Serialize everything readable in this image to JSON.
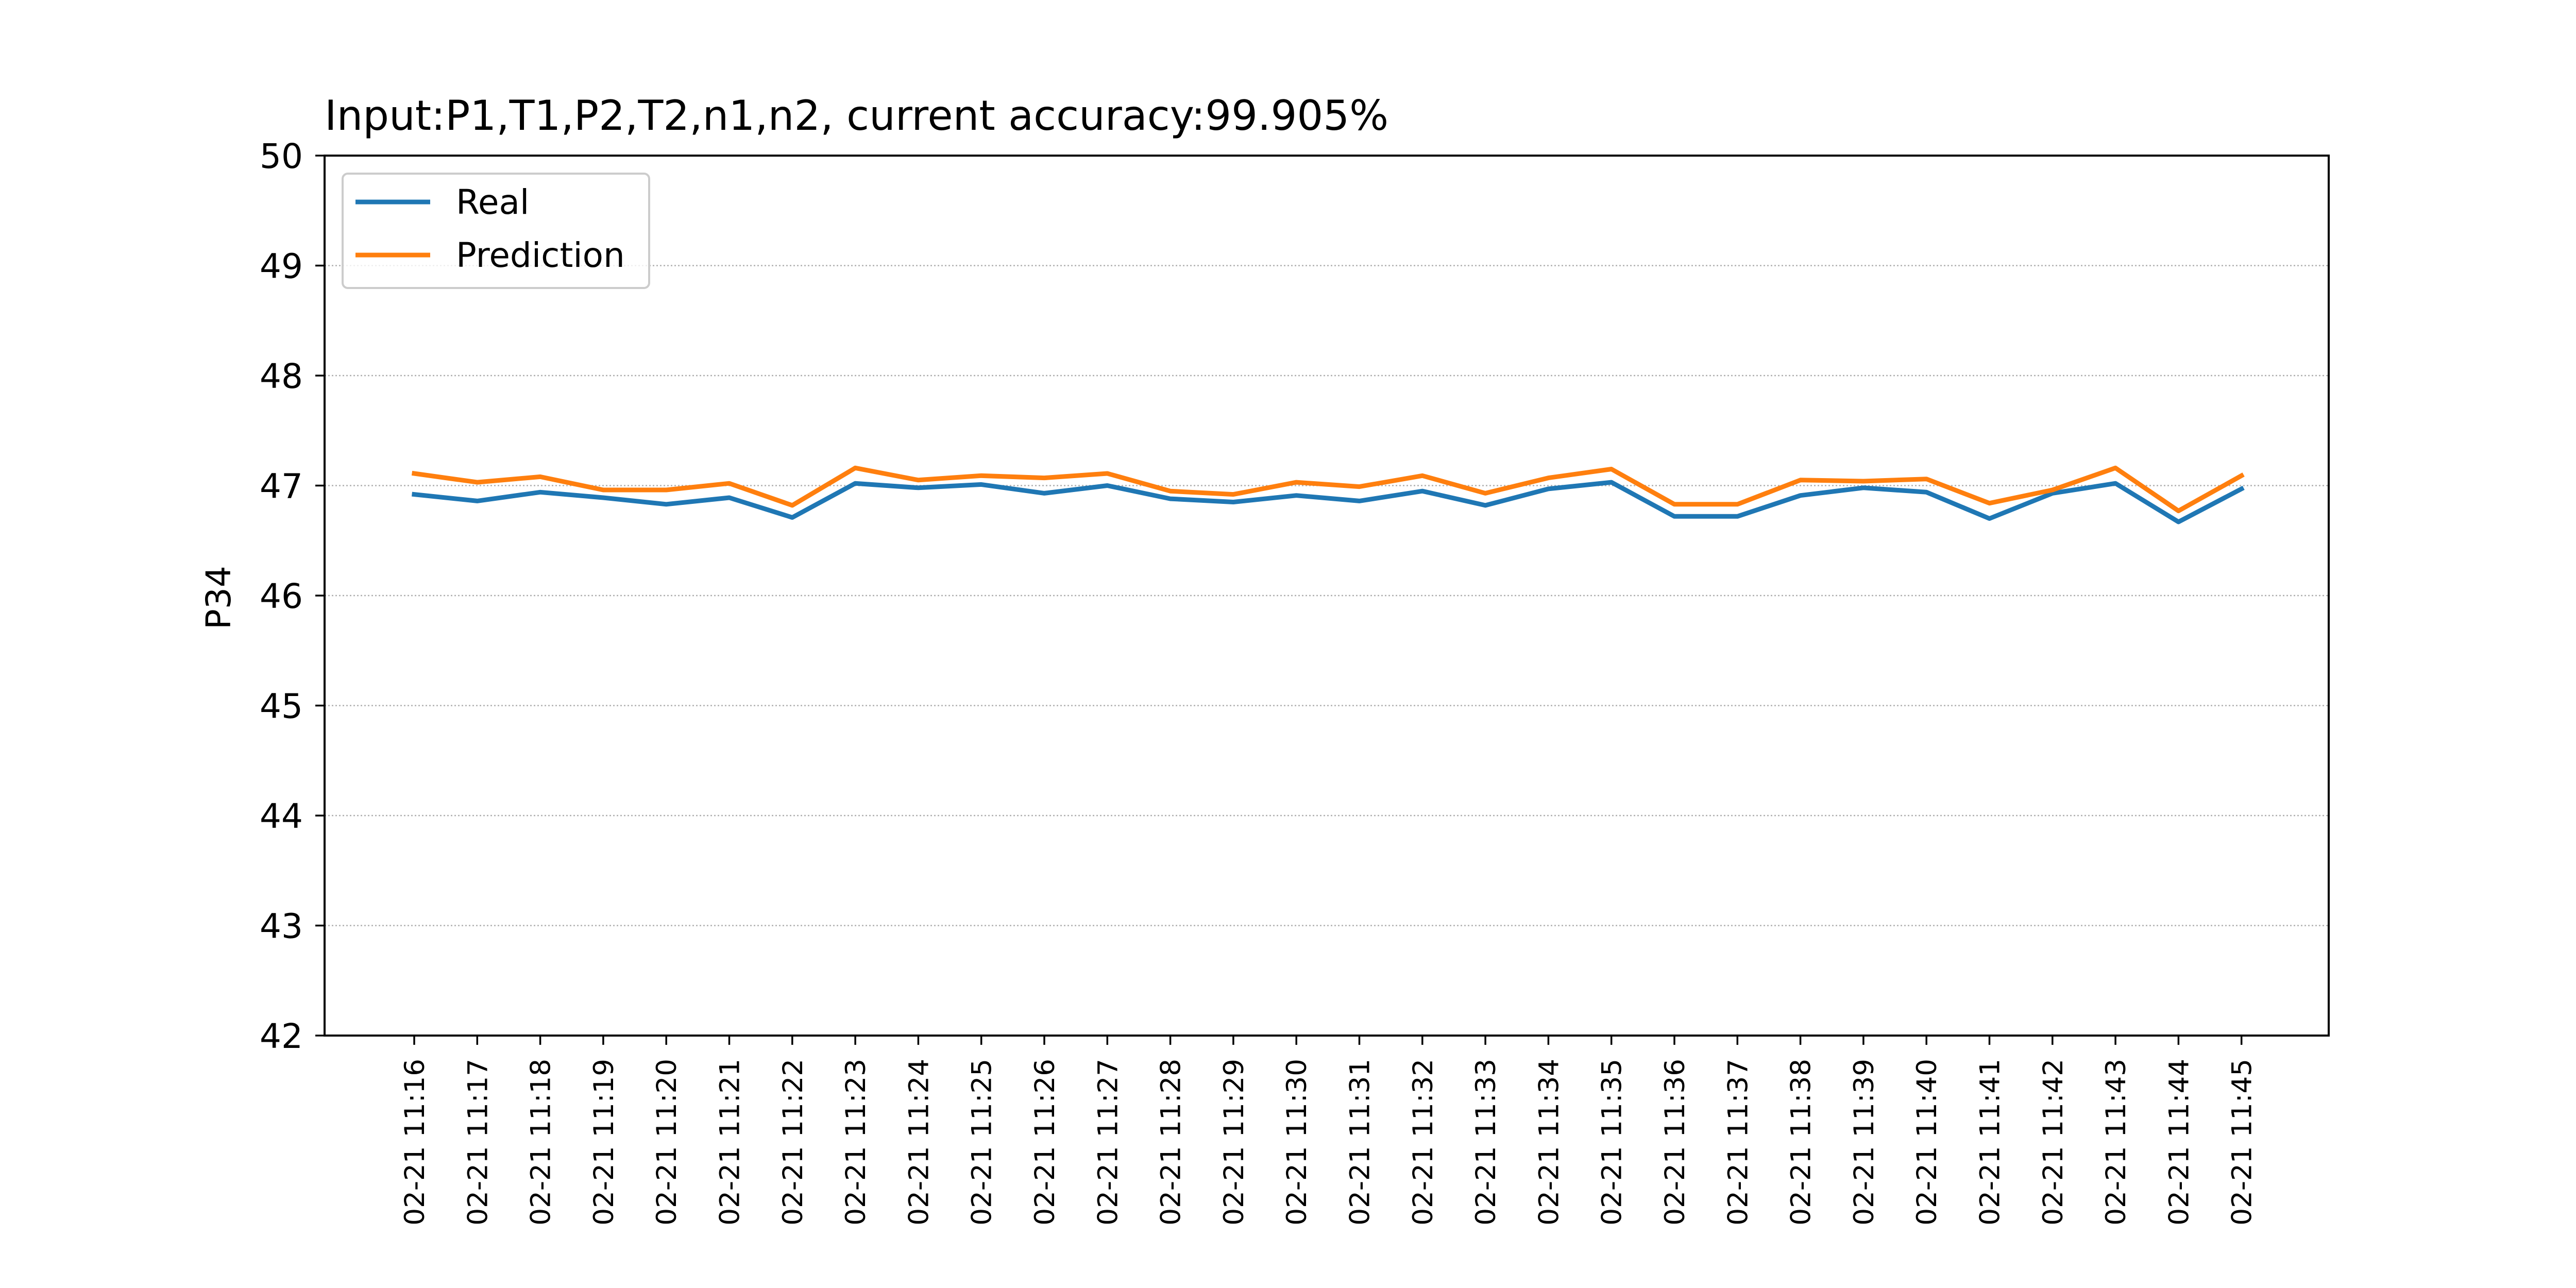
{
  "chart_data": {
    "type": "line",
    "title": "Input:P1,T1,P2,T2,n1,n2, current accuracy:99.905%",
    "xlabel": "",
    "ylabel": "P34",
    "ylim": [
      42,
      50
    ],
    "yticks": [
      42,
      43,
      44,
      45,
      46,
      47,
      48,
      49,
      50
    ],
    "grid": "horizontal dotted",
    "legend_position": "top-left",
    "categories": [
      "02-21 11:16",
      "02-21 11:17",
      "02-21 11:18",
      "02-21 11:19",
      "02-21 11:20",
      "02-21 11:21",
      "02-21 11:22",
      "02-21 11:23",
      "02-21 11:24",
      "02-21 11:25",
      "02-21 11:26",
      "02-21 11:27",
      "02-21 11:28",
      "02-21 11:29",
      "02-21 11:30",
      "02-21 11:31",
      "02-21 11:32",
      "02-21 11:33",
      "02-21 11:34",
      "02-21 11:35",
      "02-21 11:36",
      "02-21 11:37",
      "02-21 11:38",
      "02-21 11:39",
      "02-21 11:40",
      "02-21 11:41",
      "02-21 11:42",
      "02-21 11:43",
      "02-21 11:44",
      "02-21 11:45"
    ],
    "series": [
      {
        "name": "Real",
        "color": "#1f77b4",
        "values": [
          46.92,
          46.86,
          46.94,
          46.89,
          46.83,
          46.89,
          46.71,
          47.02,
          46.98,
          47.01,
          46.93,
          47.0,
          46.88,
          46.85,
          46.91,
          46.86,
          46.95,
          46.82,
          46.97,
          47.03,
          46.72,
          46.72,
          46.91,
          46.98,
          46.94,
          46.7,
          46.93,
          47.02,
          46.67,
          46.97
        ]
      },
      {
        "name": "Prediction",
        "color": "#ff7f0e",
        "values": [
          47.11,
          47.03,
          47.08,
          46.96,
          46.96,
          47.02,
          46.82,
          47.16,
          47.05,
          47.09,
          47.07,
          47.11,
          46.95,
          46.92,
          47.03,
          46.99,
          47.09,
          46.93,
          47.07,
          47.15,
          46.83,
          46.83,
          47.05,
          47.04,
          47.06,
          46.84,
          46.96,
          47.16,
          46.77,
          47.09
        ]
      }
    ]
  }
}
